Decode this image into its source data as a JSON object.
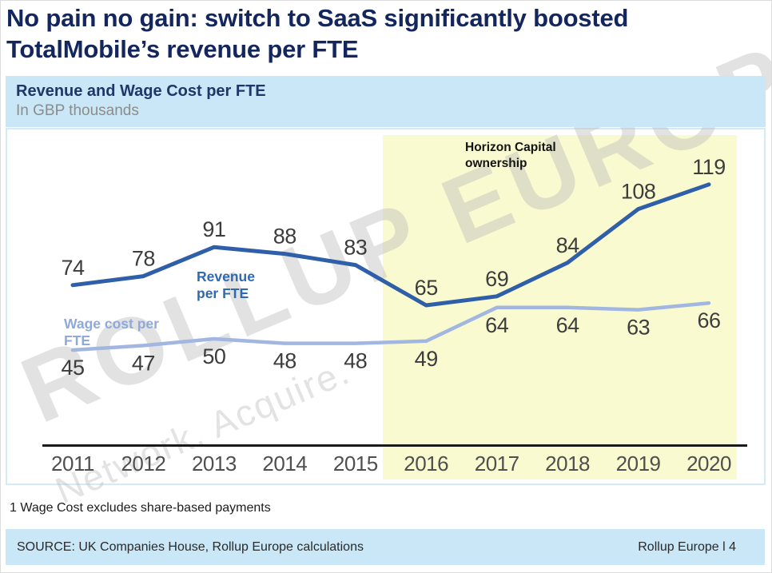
{
  "slide": {
    "title": "No pain no gain: switch to SaaS significantly boosted TotalMobile’s revenue per FTE"
  },
  "chart_header": {
    "title": "Revenue and Wage Cost per FTE",
    "subtitle": "In GBP thousands"
  },
  "chart_data": {
    "type": "line",
    "title": "Revenue and Wage Cost per FTE",
    "units": "GBP thousands",
    "categories": [
      "2011",
      "2012",
      "2013",
      "2014",
      "2015",
      "2016",
      "2017",
      "2018",
      "2019",
      "2020"
    ],
    "series": [
      {
        "name": "Revenue per FTE",
        "values": [
          74,
          78,
          91,
          88,
          83,
          65,
          69,
          84,
          108,
          119
        ],
        "color": "#2f5fa8",
        "label_color": "#2d6ab4",
        "label_position": "above"
      },
      {
        "name": "Wage cost per FTE",
        "values": [
          45,
          47,
          50,
          48,
          48,
          49,
          64,
          64,
          63,
          66
        ],
        "color": "#a2b6e2",
        "label_color": "#8ea9da",
        "label_position": "below"
      }
    ],
    "highlight_region": {
      "label": "Horizon Capital ownership",
      "from": "2016",
      "to": "2020",
      "color": "#fafad0"
    },
    "value_label_color": "#3d3d3d",
    "axis_label_color": "#4f4f4f",
    "axis_line_color": "#1a1a1a",
    "ylim": [
      0,
      140
    ],
    "grid": false,
    "legend": "inline-series-labels"
  },
  "watermark": {
    "line1": "ROLLUP EUROPE",
    "line2": "Network. Acquire."
  },
  "footnote": "1 Wage Cost excludes share-based payments",
  "footer": {
    "source": "SOURCE: UK Companies House, Rollup Europe calculations",
    "page": "Rollup Europe l 4"
  },
  "colors": {
    "title_navy": "#13265e",
    "header_bar": "#c9e7f6",
    "footer_bar": "#c9e7f6",
    "highlight_yellow": "#fafad0"
  }
}
